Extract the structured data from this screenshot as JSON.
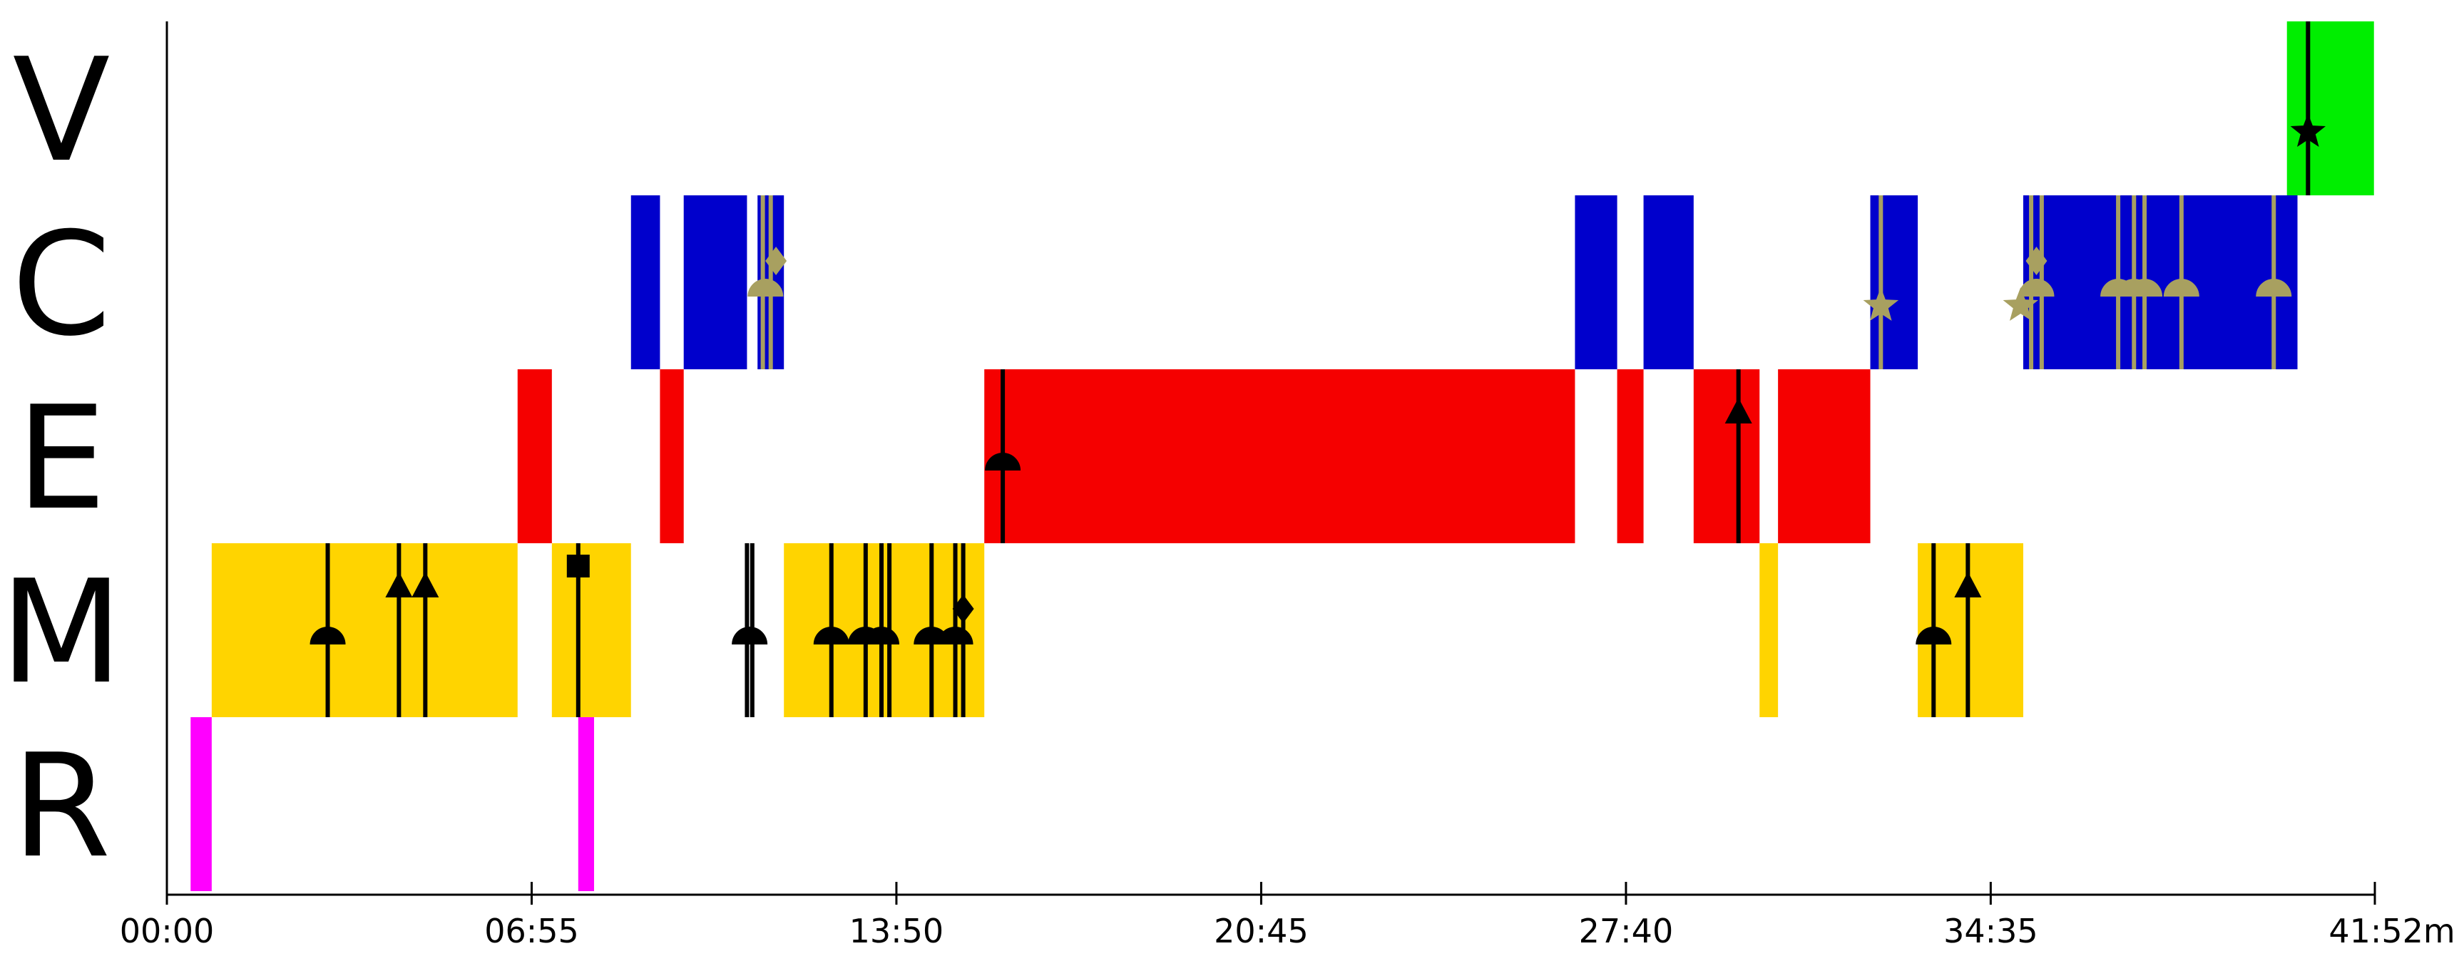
{
  "chart_data": {
    "type": "timeline",
    "x_unit": "minutes",
    "xlim": [
      0,
      41.867
    ],
    "x_ticks": [
      {
        "value": 0,
        "label": "00:00"
      },
      {
        "value": 6.917,
        "label": "06:55"
      },
      {
        "value": 13.833,
        "label": "13:50"
      },
      {
        "value": 20.75,
        "label": "20:45"
      },
      {
        "value": 27.667,
        "label": "27:40"
      },
      {
        "value": 34.583,
        "label": "34:35"
      },
      {
        "value": 41.867,
        "label": "41:52m"
      }
    ],
    "rows": [
      {
        "label": "V",
        "color": "#00ee00",
        "segments": [
          [
            40.2,
            41.85
          ]
        ]
      },
      {
        "label": "C",
        "color": "#0000cc",
        "segments": [
          [
            8.8,
            9.35
          ],
          [
            9.8,
            11.0
          ],
          [
            11.2,
            11.7
          ],
          [
            26.7,
            27.5
          ],
          [
            28.0,
            28.95
          ],
          [
            32.3,
            33.2
          ],
          [
            35.2,
            40.4
          ]
        ]
      },
      {
        "label": "E",
        "color": "#f50000",
        "segments": [
          [
            6.65,
            7.3
          ],
          [
            9.35,
            9.8
          ],
          [
            15.5,
            26.7
          ],
          [
            27.5,
            28.0
          ],
          [
            28.95,
            30.2
          ],
          [
            30.55,
            32.3
          ]
        ]
      },
      {
        "label": "M",
        "color": "#ffd400",
        "segments": [
          [
            0.85,
            6.65
          ],
          [
            7.3,
            8.8
          ],
          [
            11.7,
            15.5
          ],
          [
            30.2,
            30.55
          ],
          [
            33.2,
            35.2
          ]
        ]
      },
      {
        "label": "R",
        "color": "#ff00ff",
        "segments": [
          [
            0.45,
            0.85
          ],
          [
            7.8,
            8.1
          ]
        ]
      }
    ],
    "markers": [
      {
        "row": "V",
        "x": 40.6,
        "shape": "star",
        "color": "#000000"
      },
      {
        "row": "C",
        "x": 11.35,
        "shape": "half-circle",
        "color": "#a8a060"
      },
      {
        "row": "C",
        "x": 11.55,
        "shape": "diamond",
        "color": "#a8a060"
      },
      {
        "row": "C",
        "x": 32.5,
        "shape": "star",
        "color": "#a8a060"
      },
      {
        "row": "C",
        "x": 35.15,
        "shape": "star",
        "color": "#a8a060"
      },
      {
        "row": "C",
        "x": 35.45,
        "shape": "half-circle",
        "color": "#a8a060"
      },
      {
        "row": "C",
        "x": 35.45,
        "shape": "diamond",
        "color": "#a8a060"
      },
      {
        "row": "C",
        "x": 37.0,
        "shape": "half-circle",
        "color": "#a8a060"
      },
      {
        "row": "C",
        "x": 37.3,
        "shape": "half-circle",
        "color": "#a8a060"
      },
      {
        "row": "C",
        "x": 37.5,
        "shape": "half-circle",
        "color": "#a8a060"
      },
      {
        "row": "C",
        "x": 38.2,
        "shape": "half-circle",
        "color": "#a8a060"
      },
      {
        "row": "C",
        "x": 39.95,
        "shape": "half-circle",
        "color": "#a8a060"
      },
      {
        "row": "E",
        "x": 15.85,
        "shape": "half-circle",
        "color": "#000000"
      },
      {
        "row": "E",
        "x": 29.8,
        "shape": "triangle",
        "color": "#000000"
      },
      {
        "row": "M",
        "x": 3.05,
        "shape": "half-circle",
        "color": "#000000"
      },
      {
        "row": "M",
        "x": 4.4,
        "shape": "triangle",
        "color": "#000000"
      },
      {
        "row": "M",
        "x": 4.9,
        "shape": "triangle",
        "color": "#000000"
      },
      {
        "row": "M",
        "x": 7.8,
        "shape": "square",
        "color": "#000000"
      },
      {
        "row": "M",
        "x": 11.05,
        "shape": "half-circle",
        "color": "#000000"
      },
      {
        "row": "M",
        "x": 12.6,
        "shape": "half-circle",
        "color": "#000000"
      },
      {
        "row": "M",
        "x": 13.25,
        "shape": "half-circle",
        "color": "#000000"
      },
      {
        "row": "M",
        "x": 13.55,
        "shape": "half-circle",
        "color": "#000000"
      },
      {
        "row": "M",
        "x": 14.5,
        "shape": "half-circle",
        "color": "#000000"
      },
      {
        "row": "M",
        "x": 14.95,
        "shape": "half-circle",
        "color": "#000000"
      },
      {
        "row": "M",
        "x": 15.1,
        "shape": "diamond",
        "color": "#000000"
      },
      {
        "row": "M",
        "x": 33.5,
        "shape": "half-circle",
        "color": "#000000"
      },
      {
        "row": "M",
        "x": 34.15,
        "shape": "triangle",
        "color": "#000000"
      }
    ],
    "vlines": [
      {
        "row": "V",
        "x": 40.6,
        "color": "#000000"
      },
      {
        "row": "C",
        "x": 11.3,
        "color": "#a8a060"
      },
      {
        "row": "C",
        "x": 11.45,
        "color": "#a8a060"
      },
      {
        "row": "C",
        "x": 32.5,
        "color": "#a8a060"
      },
      {
        "row": "C",
        "x": 35.35,
        "color": "#a8a060"
      },
      {
        "row": "C",
        "x": 35.55,
        "color": "#a8a060"
      },
      {
        "row": "C",
        "x": 37.0,
        "color": "#a8a060"
      },
      {
        "row": "C",
        "x": 37.3,
        "color": "#a8a060"
      },
      {
        "row": "C",
        "x": 37.5,
        "color": "#a8a060"
      },
      {
        "row": "C",
        "x": 38.2,
        "color": "#a8a060"
      },
      {
        "row": "C",
        "x": 39.95,
        "color": "#a8a060"
      },
      {
        "row": "E",
        "x": 15.85,
        "color": "#000000"
      },
      {
        "row": "E",
        "x": 29.8,
        "color": "#000000"
      },
      {
        "row": "M",
        "x": 3.05,
        "color": "#000000"
      },
      {
        "row": "M",
        "x": 4.4,
        "color": "#000000"
      },
      {
        "row": "M",
        "x": 4.9,
        "color": "#000000"
      },
      {
        "row": "M",
        "x": 7.8,
        "color": "#000000"
      },
      {
        "row": "M",
        "x": 11.0,
        "color": "#000000"
      },
      {
        "row": "M",
        "x": 11.1,
        "color": "#000000"
      },
      {
        "row": "M",
        "x": 12.6,
        "color": "#000000"
      },
      {
        "row": "M",
        "x": 13.25,
        "color": "#000000"
      },
      {
        "row": "M",
        "x": 13.55,
        "color": "#000000"
      },
      {
        "row": "M",
        "x": 13.7,
        "color": "#000000"
      },
      {
        "row": "M",
        "x": 14.5,
        "color": "#000000"
      },
      {
        "row": "M",
        "x": 14.95,
        "color": "#000000"
      },
      {
        "row": "M",
        "x": 15.1,
        "color": "#000000"
      },
      {
        "row": "M",
        "x": 33.5,
        "color": "#000000"
      },
      {
        "row": "M",
        "x": 34.15,
        "color": "#000000"
      }
    ]
  }
}
